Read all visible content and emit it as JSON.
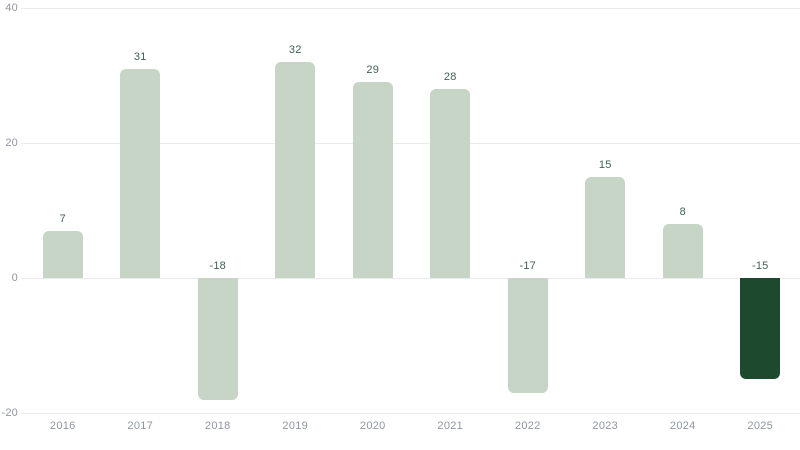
{
  "chart_data": {
    "type": "bar",
    "categories": [
      "2016",
      "2017",
      "2018",
      "2019",
      "2020",
      "2021",
      "2022",
      "2023",
      "2024",
      "2025"
    ],
    "values": [
      7,
      31,
      -18,
      32,
      29,
      28,
      -17,
      15,
      8,
      -15
    ],
    "value_labels": [
      "7",
      "31",
      "-18",
      "32",
      "29",
      "28",
      "-17",
      "15",
      "8",
      "-15"
    ],
    "highlight_index": 9,
    "title": "",
    "xlabel": "",
    "ylabel": "",
    "ylim": [
      -20,
      40
    ],
    "yticks": [
      40,
      20,
      0,
      -20
    ],
    "ytick_labels": [
      "40",
      "20",
      "0",
      "-20"
    ],
    "grid": "horizontal",
    "legend": "none",
    "colors": {
      "background": "#ffffff",
      "bar": "#c7d5c6",
      "bar_highlight": "#1d4a2f",
      "value_label": "#426253",
      "axis_label": "#8f96a3",
      "gridline": "#e9ebee"
    }
  }
}
